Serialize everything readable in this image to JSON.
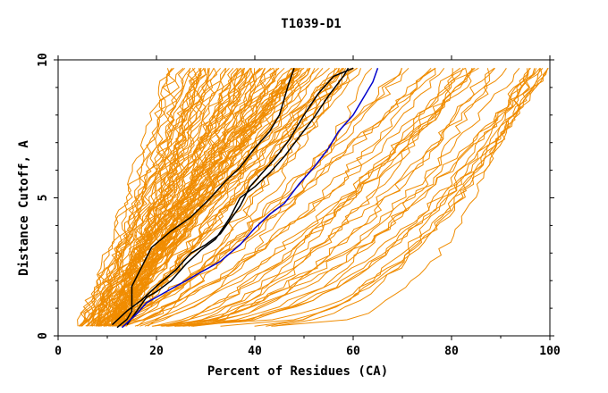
{
  "chart_data": {
    "type": "line",
    "title": "T1039-D1",
    "xlabel": "Percent of Residues (CA)",
    "ylabel": "Distance Cutoff, A",
    "xlim": [
      0,
      100
    ],
    "ylim": [
      0,
      10
    ],
    "x_ticks": [
      "0",
      "20",
      "40",
      "60",
      "80",
      "100"
    ],
    "y_ticks": [
      "0",
      "5",
      "10"
    ],
    "grid": false,
    "legend": "none",
    "colors": {
      "models": "#f08c00",
      "highlight_black": "#000000",
      "highlight_blue": "#0000cc"
    },
    "x_key": "percent_residues",
    "y_key": "cutoff_A",
    "series": [
      {
        "color": "#000000",
        "points": [
          [
            12,
            0.3
          ],
          [
            14,
            0.6
          ],
          [
            15,
            0.9
          ],
          [
            15,
            1.8
          ],
          [
            17,
            2.5
          ],
          [
            19,
            3.2
          ],
          [
            23,
            3.8
          ],
          [
            27,
            4.3
          ],
          [
            31,
            5.0
          ],
          [
            34,
            5.6
          ],
          [
            37,
            6.1
          ],
          [
            40,
            6.8
          ],
          [
            43,
            7.4
          ],
          [
            45,
            8.0
          ],
          [
            46,
            8.6
          ],
          [
            47,
            9.2
          ],
          [
            48,
            9.7
          ]
        ]
      },
      {
        "color": "#000000",
        "points": [
          [
            11,
            0.4
          ],
          [
            14,
            0.9
          ],
          [
            17,
            1.3
          ],
          [
            20,
            1.8
          ],
          [
            24,
            2.4
          ],
          [
            27,
            3.0
          ],
          [
            30,
            3.3
          ],
          [
            33,
            3.7
          ],
          [
            35,
            4.2
          ],
          [
            37,
            4.7
          ],
          [
            39,
            5.4
          ],
          [
            41,
            5.8
          ],
          [
            44,
            6.4
          ],
          [
            47,
            7.1
          ],
          [
            50,
            8.0
          ],
          [
            53,
            8.8
          ],
          [
            56,
            9.4
          ],
          [
            60,
            9.7
          ]
        ]
      },
      {
        "color": "#000000",
        "points": [
          [
            14,
            0.4
          ],
          [
            16,
            0.9
          ],
          [
            18,
            1.4
          ],
          [
            20,
            1.6
          ],
          [
            23,
            2.0
          ],
          [
            26,
            2.6
          ],
          [
            29,
            3.1
          ],
          [
            32,
            3.5
          ],
          [
            35,
            4.3
          ],
          [
            37,
            5.0
          ],
          [
            40,
            5.4
          ],
          [
            43,
            5.9
          ],
          [
            46,
            6.5
          ],
          [
            49,
            7.2
          ],
          [
            52,
            7.9
          ],
          [
            55,
            8.7
          ],
          [
            58,
            9.4
          ],
          [
            59,
            9.7
          ]
        ]
      },
      {
        "color": "#0000cc",
        "points": [
          [
            13,
            0.3
          ],
          [
            16,
            0.8
          ],
          [
            18,
            1.2
          ],
          [
            21,
            1.5
          ],
          [
            25,
            1.9
          ],
          [
            29,
            2.3
          ],
          [
            33,
            2.7
          ],
          [
            37,
            3.3
          ],
          [
            40,
            3.9
          ],
          [
            43,
            4.4
          ],
          [
            46,
            4.8
          ],
          [
            49,
            5.5
          ],
          [
            52,
            6.1
          ],
          [
            55,
            6.8
          ],
          [
            57,
            7.4
          ],
          [
            60,
            8.0
          ],
          [
            62,
            8.6
          ],
          [
            64,
            9.2
          ],
          [
            65,
            9.7
          ]
        ]
      }
    ]
  }
}
